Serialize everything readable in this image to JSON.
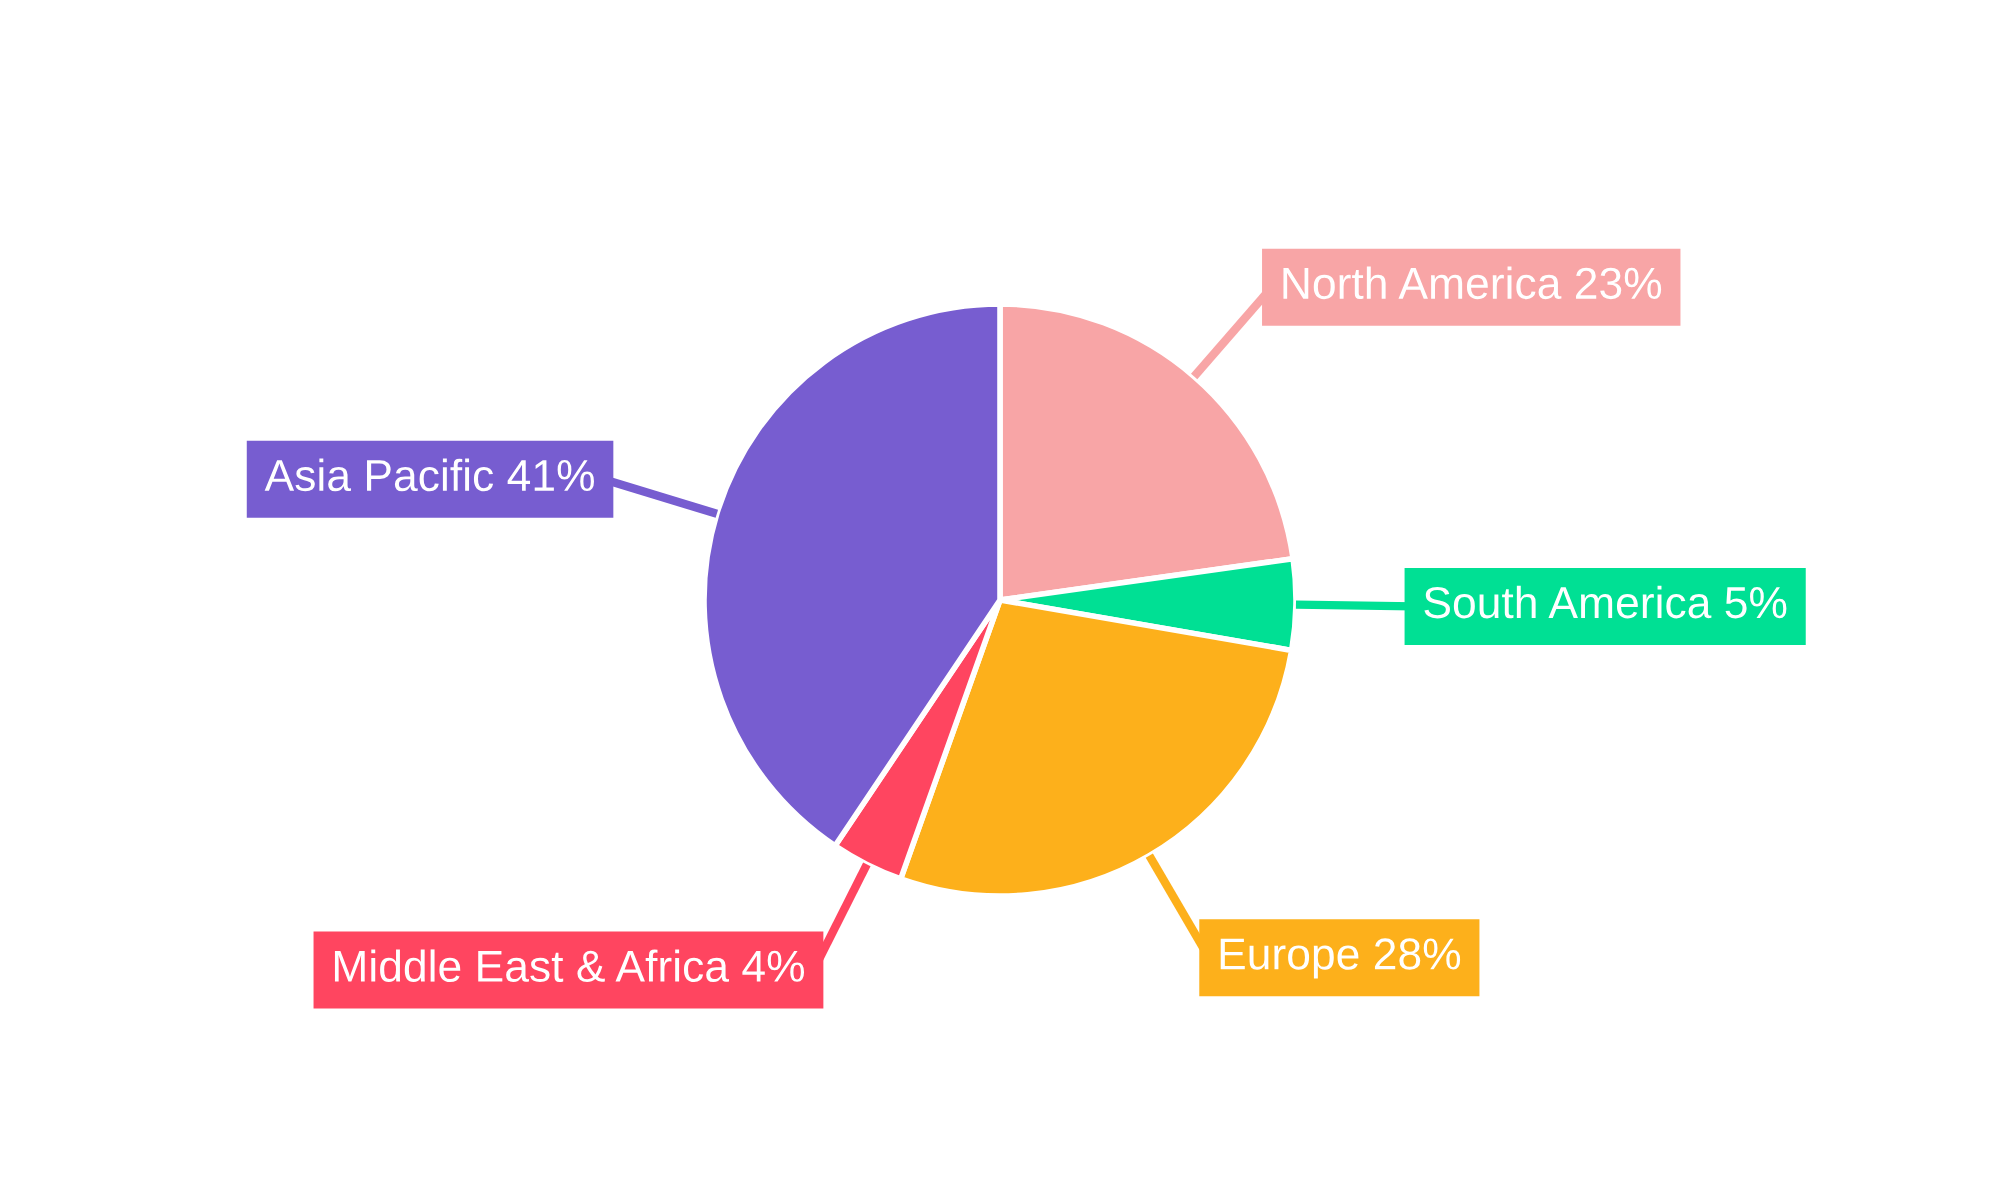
{
  "chart_data": {
    "type": "pie",
    "categories": [
      "North America",
      "South America",
      "Europe",
      "Middle East & Africa",
      "Asia Pacific"
    ],
    "values": [
      23,
      5,
      28,
      4,
      41
    ],
    "value_labels": [
      "23%",
      "5%",
      "28%",
      "4%",
      "41%"
    ],
    "colors": [
      "#f8a5a6",
      "#00e094",
      "#fdb01b",
      "#ff4560",
      "#775dd0"
    ],
    "legend": false
  }
}
